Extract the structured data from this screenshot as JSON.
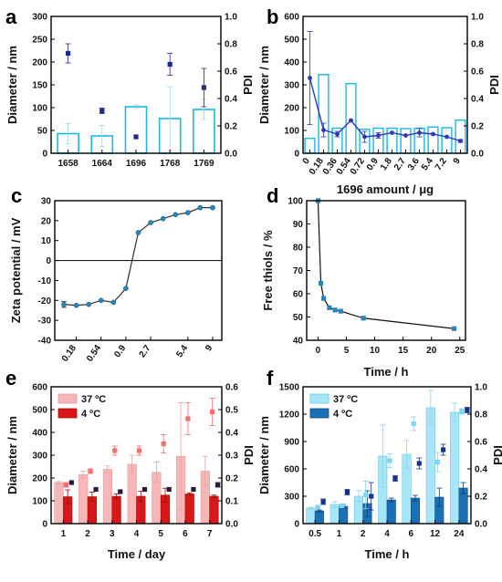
{
  "chart_data": [
    {
      "panel": "a",
      "type": "bar",
      "categories": [
        "1658",
        "1664",
        "1696",
        "1768",
        "1769"
      ],
      "xticks": [
        "1658",
        "1664",
        "1696",
        "1768",
        "1769"
      ],
      "ylabel": "Diameter / nm",
      "y2label": "PDI",
      "ylim": [
        0,
        300
      ],
      "y2lim": [
        0,
        1.0
      ],
      "yticks": [
        "0",
        "50",
        "100",
        "150",
        "200",
        "250",
        "300"
      ],
      "y2ticks": [
        "0.0",
        "0.2",
        "0.4",
        "0.6",
        "0.8",
        "1.0"
      ],
      "series": [
        {
          "axis": "left",
          "kind": "bar",
          "values": [
            43,
            38,
            102,
            76,
            96
          ],
          "errors": [
            22,
            23,
            4,
            70,
            22
          ]
        },
        {
          "axis": "right",
          "kind": "points",
          "values": [
            0.73,
            0.31,
            0.12,
            0.65,
            0.48
          ],
          "errors": [
            0.07,
            0.02,
            0.0,
            0.08,
            0.14
          ]
        }
      ],
      "colors": {
        "bar": "#1ab8e0",
        "point": "#1c2a88"
      }
    },
    {
      "panel": "b",
      "type": "bar",
      "categories": [
        "0",
        "0.18",
        "0.36",
        "0.54",
        "0.72",
        "0.9",
        "1.8",
        "2.7",
        "3.6",
        "5.4",
        "7.2",
        "9"
      ],
      "xticks": [
        "0",
        "0.18",
        "0.36",
        "0.54",
        "0.72",
        "0.9",
        "1.8",
        "2.7",
        "3.6",
        "5.4",
        "7.2",
        "9"
      ],
      "xlabel": "1696 amount / μg",
      "ylabel": "Diameter / nm",
      "y2label": "PDI",
      "ylim": [
        0,
        600
      ],
      "y2lim": [
        0,
        1.0
      ],
      "yticks": [
        "0",
        "100",
        "200",
        "300",
        "400",
        "500",
        "600"
      ],
      "y2ticks": [
        "0.0",
        "0.2",
        "0.4",
        "0.6",
        "0.8",
        "1.0"
      ],
      "series": [
        {
          "axis": "left",
          "kind": "bar",
          "values": [
            65,
            345,
            110,
            305,
            105,
            110,
            110,
            108,
            110,
            115,
            112,
            145
          ],
          "errors": [
            0,
            0,
            0,
            0,
            0,
            0,
            0,
            0,
            0,
            0,
            0,
            0
          ]
        },
        {
          "axis": "right",
          "kind": "line",
          "values": [
            0.55,
            0.17,
            0.14,
            0.24,
            0.12,
            0.13,
            0.15,
            0.13,
            0.15,
            0.14,
            0.12,
            0.09
          ],
          "errors": [
            0.34,
            0.05,
            0.02,
            0.0,
            0.04,
            0.02,
            0.0,
            0.0,
            0.03,
            0.0,
            0.0,
            0.01
          ]
        }
      ],
      "colors": {
        "bar": "#1ab8e0",
        "line": "#2b37b5"
      }
    },
    {
      "panel": "c",
      "type": "line",
      "x": [
        0,
        0.18,
        0.36,
        0.54,
        0.72,
        0.9,
        1.8,
        2.7,
        3.6,
        4.5,
        5.4,
        7.2,
        9
      ],
      "values": [
        -22,
        -22.5,
        -22,
        -20,
        -21,
        -14,
        14,
        19,
        21,
        23,
        24,
        26.5,
        26.5
      ],
      "errors": [
        1.5,
        0,
        0,
        0,
        0,
        0,
        0,
        0,
        0,
        0,
        0,
        0,
        0
      ],
      "ylabel": "Zeta potential / mV",
      "ylim": [
        -40,
        30
      ],
      "yticks": [
        "-40",
        "-30",
        "-20",
        "-10",
        "0",
        "10",
        "20",
        "30"
      ],
      "xticks": [
        "0.18",
        "0.54",
        "0.9",
        "2.7",
        "5.4",
        "9"
      ],
      "colors": {
        "line": "#333333",
        "point": "#2a86b8"
      }
    },
    {
      "panel": "d",
      "type": "line",
      "x": [
        0,
        0.5,
        1,
        2,
        3,
        4,
        8,
        24
      ],
      "values": [
        100,
        64.5,
        58,
        54,
        53,
        52.5,
        49.5,
        45
      ],
      "xlabel": "Time / h",
      "ylabel": "Free thiols / %",
      "xlim": [
        -2,
        26
      ],
      "ylim": [
        40,
        100
      ],
      "yticks": [
        "40",
        "50",
        "60",
        "70",
        "80",
        "90",
        "100"
      ],
      "xticks": [
        "0",
        "5",
        "10",
        "15",
        "20",
        "25"
      ],
      "colors": {
        "line": "#111111",
        "point": "#2a86b8"
      }
    },
    {
      "panel": "e",
      "type": "bar",
      "categories": [
        "1",
        "2",
        "3",
        "4",
        "5",
        "6",
        "7"
      ],
      "xlabel": "Time / day",
      "ylabel": "Diameter / nm",
      "y2label": "PDI",
      "ylim": [
        0,
        600
      ],
      "y2lim": [
        0,
        0.6
      ],
      "yticks": [
        "0",
        "100",
        "200",
        "300",
        "400",
        "500",
        "600"
      ],
      "y2ticks": [
        "0.0",
        "0.1",
        "0.2",
        "0.3",
        "0.4",
        "0.5",
        "0.6"
      ],
      "legend": {
        "placement": "top-left",
        "items": [
          "37 ºC",
          "4 ºC"
        ]
      },
      "series": [
        {
          "name": "37 ºC",
          "axis": "left",
          "kind": "bar",
          "values": [
            180,
            215,
            238,
            260,
            225,
            295,
            230
          ],
          "errors": [
            5,
            15,
            15,
            40,
            45,
            235,
            65
          ]
        },
        {
          "name": "4 ºC",
          "axis": "left",
          "kind": "bar",
          "values": [
            118,
            118,
            120,
            120,
            125,
            130,
            120
          ],
          "errors": [
            30,
            20,
            10,
            22,
            30,
            5,
            5
          ]
        },
        {
          "name": "37 ºC PDI",
          "axis": "right",
          "kind": "points",
          "values": [
            0.17,
            0.23,
            0.32,
            0.32,
            0.35,
            0.46,
            0.49
          ],
          "errors": [
            0.01,
            0.01,
            0.02,
            0.02,
            0.04,
            0.07,
            0.06
          ]
        },
        {
          "name": "4 ºC PDI",
          "axis": "right",
          "kind": "points",
          "values": [
            0.18,
            0.15,
            0.14,
            0.15,
            0.15,
            0.15,
            0.17
          ],
          "errors": [
            0.0,
            0.0,
            0.0,
            0.0,
            0.0,
            0.0,
            0.01
          ]
        }
      ],
      "colors": {
        "bar37": "#f5b8b8",
        "bar4": "#d81818",
        "point37": "#f07070",
        "point4": "#2a1a3a"
      }
    },
    {
      "panel": "f",
      "type": "bar",
      "categories": [
        "0.5",
        "1",
        "2",
        "4",
        "6",
        "12",
        "24"
      ],
      "xlabel": "Time / h",
      "ylabel": "Diameter / nm",
      "y2label": "PDI",
      "ylim": [
        0,
        1500
      ],
      "y2lim": [
        0,
        1.0
      ],
      "yticks": [
        "0",
        "300",
        "600",
        "900",
        "1200",
        "1500"
      ],
      "y2ticks": [
        "0.0",
        "0.2",
        "0.4",
        "0.6",
        "0.8",
        "1.0"
      ],
      "legend": {
        "placement": "top-left",
        "items": [
          "37 ºC",
          "4 ºC"
        ]
      },
      "series": [
        {
          "name": "37 ºC",
          "axis": "left",
          "kind": "bar",
          "values": [
            170,
            210,
            300,
            740,
            760,
            1270,
            1220
          ],
          "errors": [
            10,
            30,
            60,
            340,
            150,
            190,
            100
          ]
        },
        {
          "name": "4 ºC",
          "axis": "left",
          "kind": "bar",
          "values": [
            140,
            190,
            220,
            260,
            280,
            290,
            390
          ],
          "errors": [
            10,
            20,
            140,
            20,
            30,
            100,
            60
          ]
        },
        {
          "name": "37 ºC PDI",
          "axis": "right",
          "kind": "points",
          "values": [
            0.12,
            0.13,
            0.21,
            0.46,
            0.73,
            0.45,
            0.82
          ],
          "errors": [
            0.01,
            0.01,
            0.1,
            0.05,
            0.05,
            0.07,
            0.02
          ]
        },
        {
          "name": "4 ºC PDI",
          "axis": "right",
          "kind": "points",
          "values": [
            0.16,
            0.23,
            0.2,
            0.33,
            0.44,
            0.54,
            0.83
          ],
          "errors": [
            0.02,
            0.02,
            0.1,
            0.02,
            0.04,
            0.04,
            0.02
          ]
        }
      ],
      "colors": {
        "bar37": "#a7e6f7",
        "bar4": "#1a6fb5",
        "point37": "#7ad6f2",
        "point4": "#15318f"
      }
    }
  ]
}
